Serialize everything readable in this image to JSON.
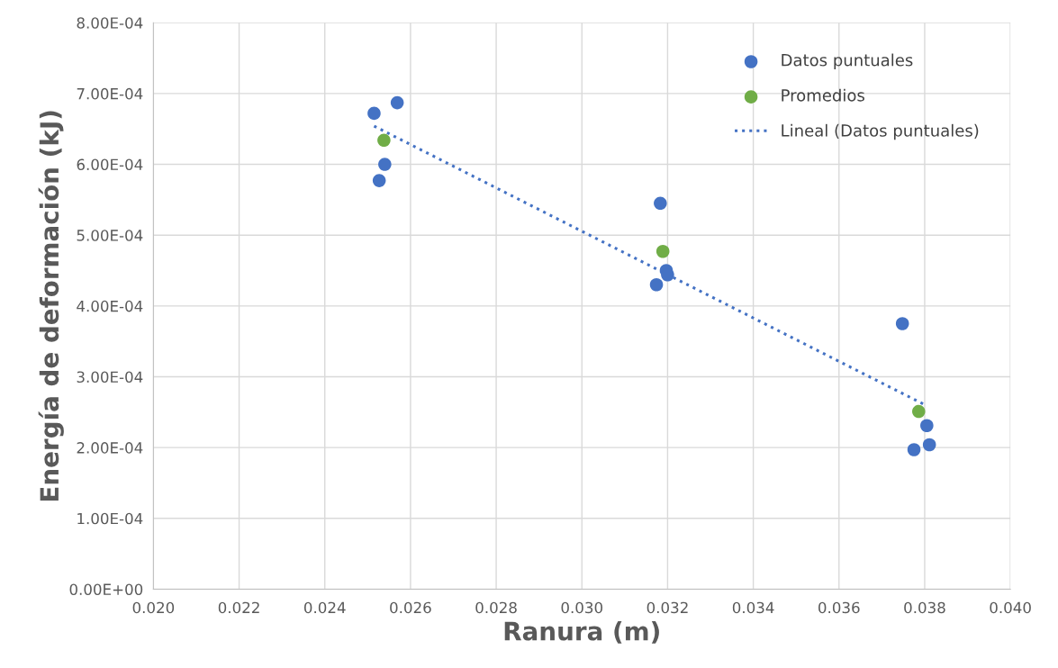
{
  "chart_data": {
    "type": "scatter",
    "xlabel": "Ranura (m)",
    "ylabel": "Energía de deformación (kJ)",
    "series": [
      {
        "name": "Datos puntuales",
        "color": "#4472c4",
        "x": [
          0.02515,
          0.02569,
          0.0254,
          0.02527,
          0.03183,
          0.03174,
          0.03197,
          0.032,
          0.03748,
          0.03805,
          0.03775,
          0.03811
        ],
        "values": [
          0.000672,
          0.000687,
          0.0006,
          0.000577,
          0.000545,
          0.00043,
          0.00045,
          0.000444,
          0.000375,
          0.000231,
          0.000197,
          0.000204
        ]
      },
      {
        "name": "Promedios",
        "color": "#70ad47",
        "x": [
          0.02538,
          0.03189,
          0.03786
        ],
        "values": [
          0.000634,
          0.000477,
          0.000251
        ]
      },
      {
        "name": "Lineal (Datos puntuales)",
        "color": "#4472c4",
        "type": "line",
        "line_style": "dotted",
        "marker": "none",
        "x": [
          0.02515,
          0.03805
        ],
        "values": [
          0.000654,
          0.000259
        ]
      }
    ],
    "marker": "circle",
    "xlim": [
      0.02,
      0.04
    ],
    "xticks": [
      {
        "value": 0.02,
        "label": "0.020"
      },
      {
        "value": 0.022,
        "label": "0.022"
      },
      {
        "value": 0.024,
        "label": "0.024"
      },
      {
        "value": 0.026,
        "label": "0.026"
      },
      {
        "value": 0.028,
        "label": "0.028"
      },
      {
        "value": 0.03,
        "label": "0.030"
      },
      {
        "value": 0.032,
        "label": "0.032"
      },
      {
        "value": 0.034,
        "label": "0.034"
      },
      {
        "value": 0.036,
        "label": "0.036"
      },
      {
        "value": 0.038,
        "label": "0.038"
      },
      {
        "value": 0.04,
        "label": "0.040"
      }
    ],
    "ylim": [
      0,
      0.0008
    ],
    "yticks": [
      {
        "value": 0,
        "label": "0.00E+00"
      },
      {
        "value": 0.0001,
        "label": "1.00E-04"
      },
      {
        "value": 0.0002,
        "label": "2.00E-04"
      },
      {
        "value": 0.0003,
        "label": "3.00E-04"
      },
      {
        "value": 0.0004,
        "label": "4.00E-04"
      },
      {
        "value": 0.0005,
        "label": "5.00E-04"
      },
      {
        "value": 0.0006,
        "label": "6.00E-04"
      },
      {
        "value": 0.0007,
        "label": "7.00E-04"
      },
      {
        "value": 0.0008,
        "label": "8.00E-04"
      }
    ],
    "grid": true,
    "legend": "top right"
  }
}
